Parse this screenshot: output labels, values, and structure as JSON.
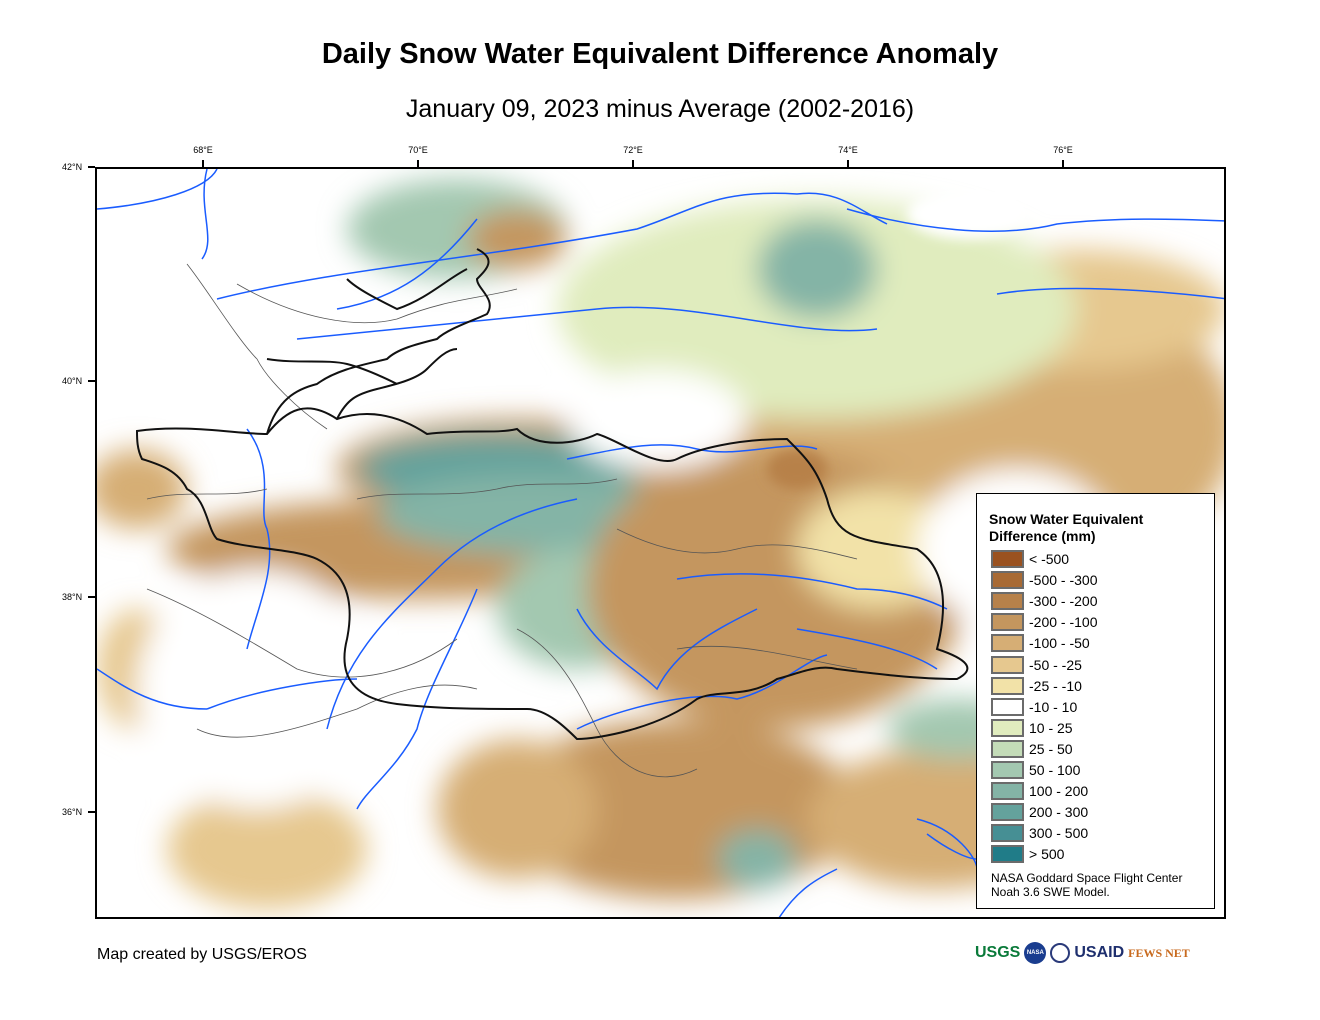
{
  "title": "Daily Snow Water Equivalent Difference Anomaly",
  "subtitle": "January 09, 2023 minus Average (2002-2016)",
  "axes": {
    "longitude_ticks": [
      "68°E",
      "70°E",
      "72°E",
      "74°E",
      "76°E"
    ],
    "latitude_ticks": [
      "42°N",
      "40°N",
      "38°N",
      "36°N"
    ]
  },
  "legend": {
    "title": "Snow Water Equivalent Difference (mm)",
    "items": [
      {
        "label": "< -500",
        "color": "#9a5220"
      },
      {
        "label": "-500 - -300",
        "color": "#a86a34"
      },
      {
        "label": "-300 - -200",
        "color": "#b7814a"
      },
      {
        "label": "-200 - -100",
        "color": "#c4965e"
      },
      {
        "label": "-100 - -50",
        "color": "#d6ae75"
      },
      {
        "label": "-50 - -25",
        "color": "#e6c88f"
      },
      {
        "label": "-25 - -10",
        "color": "#f2e2a8"
      },
      {
        "label": "-10 - 10",
        "color": "#ffffff"
      },
      {
        "label": "10 - 25",
        "color": "#e0ecbe"
      },
      {
        "label": "25 - 50",
        "color": "#c4dcb8"
      },
      {
        "label": "50 - 100",
        "color": "#a3c8b0"
      },
      {
        "label": "100 - 200",
        "color": "#84b4a6"
      },
      {
        "label": "200 - 300",
        "color": "#64a29c"
      },
      {
        "label": "300 - 500",
        "color": "#468f94"
      },
      {
        "label": "> 500",
        "color": "#207c88"
      }
    ],
    "credit_line1": "NASA Goddard Space Flight Center",
    "credit_line2": "Noah 3.6 SWE Model."
  },
  "footer": "Map created by USGS/EROS",
  "logos": [
    "USGS",
    "NASA",
    "USAID",
    "FEWS NET"
  ]
}
